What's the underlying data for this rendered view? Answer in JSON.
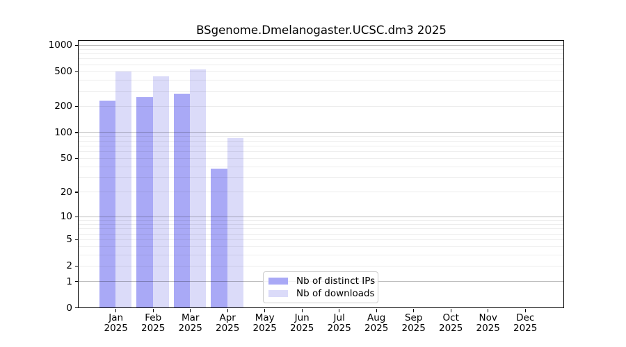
{
  "chart_data": {
    "type": "bar",
    "title": "BSgenome.Dmelanogaster.UCSC.dm3 2025",
    "xlabel": "",
    "ylabel": "",
    "year": "2025",
    "categories": [
      "Jan",
      "Feb",
      "Mar",
      "Apr",
      "May",
      "Jun",
      "Jul",
      "Aug",
      "Sep",
      "Oct",
      "Nov",
      "Dec"
    ],
    "series": [
      {
        "name": "Nb of distinct IPs",
        "color": "#a9a9f6",
        "values": [
          230,
          255,
          275,
          38,
          0,
          0,
          0,
          0,
          0,
          0,
          0,
          0
        ]
      },
      {
        "name": "Nb of downloads",
        "color": "#dbdbf9",
        "values": [
          500,
          440,
          530,
          85,
          0,
          0,
          0,
          0,
          0,
          0,
          0,
          0
        ]
      }
    ],
    "yticks": [
      0,
      1,
      2,
      5,
      10,
      20,
      50,
      100,
      200,
      500,
      1000
    ],
    "minor_gridlines": [
      2,
      3,
      4,
      5,
      6,
      7,
      8,
      9,
      20,
      30,
      40,
      50,
      60,
      70,
      80,
      90,
      200,
      300,
      400,
      500,
      600,
      700,
      800,
      900
    ],
    "major_gridlines": [
      1,
      10,
      100,
      1000
    ],
    "ylim": [
      0,
      1000
    ],
    "scale": "log10(value+1)",
    "grid": "on",
    "legend_position": "bottom-center"
  }
}
